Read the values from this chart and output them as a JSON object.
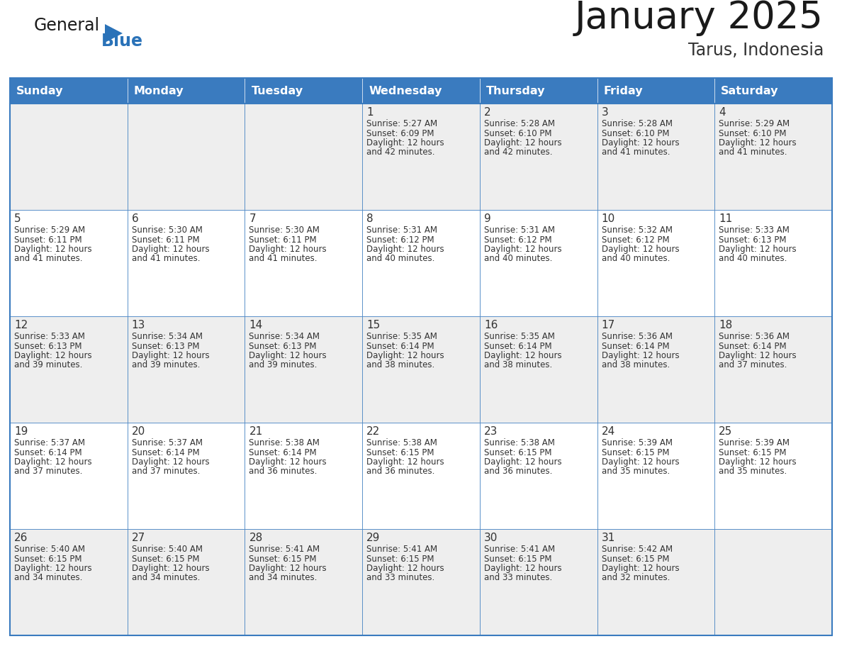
{
  "title": "January 2025",
  "subtitle": "Tarus, Indonesia",
  "days_of_week": [
    "Sunday",
    "Monday",
    "Tuesday",
    "Wednesday",
    "Thursday",
    "Friday",
    "Saturday"
  ],
  "header_bg": "#3a7bbf",
  "header_text": "#ffffff",
  "row_bg_odd": "#eeeeee",
  "row_bg_even": "#ffffff",
  "border_color": "#3a7bbf",
  "day_number_color": "#333333",
  "text_color": "#333333",
  "title_color": "#1a1a1a",
  "subtitle_color": "#333333",
  "logo_general_color": "#1a1a1a",
  "logo_blue_color": "#2a72b8",
  "calendar_data": [
    [
      null,
      null,
      null,
      {
        "day": 1,
        "sunrise": "5:27 AM",
        "sunset": "6:09 PM",
        "daylight_hours": 12,
        "daylight_minutes": 42
      },
      {
        "day": 2,
        "sunrise": "5:28 AM",
        "sunset": "6:10 PM",
        "daylight_hours": 12,
        "daylight_minutes": 42
      },
      {
        "day": 3,
        "sunrise": "5:28 AM",
        "sunset": "6:10 PM",
        "daylight_hours": 12,
        "daylight_minutes": 41
      },
      {
        "day": 4,
        "sunrise": "5:29 AM",
        "sunset": "6:10 PM",
        "daylight_hours": 12,
        "daylight_minutes": 41
      }
    ],
    [
      {
        "day": 5,
        "sunrise": "5:29 AM",
        "sunset": "6:11 PM",
        "daylight_hours": 12,
        "daylight_minutes": 41
      },
      {
        "day": 6,
        "sunrise": "5:30 AM",
        "sunset": "6:11 PM",
        "daylight_hours": 12,
        "daylight_minutes": 41
      },
      {
        "day": 7,
        "sunrise": "5:30 AM",
        "sunset": "6:11 PM",
        "daylight_hours": 12,
        "daylight_minutes": 41
      },
      {
        "day": 8,
        "sunrise": "5:31 AM",
        "sunset": "6:12 PM",
        "daylight_hours": 12,
        "daylight_minutes": 40
      },
      {
        "day": 9,
        "sunrise": "5:31 AM",
        "sunset": "6:12 PM",
        "daylight_hours": 12,
        "daylight_minutes": 40
      },
      {
        "day": 10,
        "sunrise": "5:32 AM",
        "sunset": "6:12 PM",
        "daylight_hours": 12,
        "daylight_minutes": 40
      },
      {
        "day": 11,
        "sunrise": "5:33 AM",
        "sunset": "6:13 PM",
        "daylight_hours": 12,
        "daylight_minutes": 40
      }
    ],
    [
      {
        "day": 12,
        "sunrise": "5:33 AM",
        "sunset": "6:13 PM",
        "daylight_hours": 12,
        "daylight_minutes": 39
      },
      {
        "day": 13,
        "sunrise": "5:34 AM",
        "sunset": "6:13 PM",
        "daylight_hours": 12,
        "daylight_minutes": 39
      },
      {
        "day": 14,
        "sunrise": "5:34 AM",
        "sunset": "6:13 PM",
        "daylight_hours": 12,
        "daylight_minutes": 39
      },
      {
        "day": 15,
        "sunrise": "5:35 AM",
        "sunset": "6:14 PM",
        "daylight_hours": 12,
        "daylight_minutes": 38
      },
      {
        "day": 16,
        "sunrise": "5:35 AM",
        "sunset": "6:14 PM",
        "daylight_hours": 12,
        "daylight_minutes": 38
      },
      {
        "day": 17,
        "sunrise": "5:36 AM",
        "sunset": "6:14 PM",
        "daylight_hours": 12,
        "daylight_minutes": 38
      },
      {
        "day": 18,
        "sunrise": "5:36 AM",
        "sunset": "6:14 PM",
        "daylight_hours": 12,
        "daylight_minutes": 37
      }
    ],
    [
      {
        "day": 19,
        "sunrise": "5:37 AM",
        "sunset": "6:14 PM",
        "daylight_hours": 12,
        "daylight_minutes": 37
      },
      {
        "day": 20,
        "sunrise": "5:37 AM",
        "sunset": "6:14 PM",
        "daylight_hours": 12,
        "daylight_minutes": 37
      },
      {
        "day": 21,
        "sunrise": "5:38 AM",
        "sunset": "6:14 PM",
        "daylight_hours": 12,
        "daylight_minutes": 36
      },
      {
        "day": 22,
        "sunrise": "5:38 AM",
        "sunset": "6:15 PM",
        "daylight_hours": 12,
        "daylight_minutes": 36
      },
      {
        "day": 23,
        "sunrise": "5:38 AM",
        "sunset": "6:15 PM",
        "daylight_hours": 12,
        "daylight_minutes": 36
      },
      {
        "day": 24,
        "sunrise": "5:39 AM",
        "sunset": "6:15 PM",
        "daylight_hours": 12,
        "daylight_minutes": 35
      },
      {
        "day": 25,
        "sunrise": "5:39 AM",
        "sunset": "6:15 PM",
        "daylight_hours": 12,
        "daylight_minutes": 35
      }
    ],
    [
      {
        "day": 26,
        "sunrise": "5:40 AM",
        "sunset": "6:15 PM",
        "daylight_hours": 12,
        "daylight_minutes": 34
      },
      {
        "day": 27,
        "sunrise": "5:40 AM",
        "sunset": "6:15 PM",
        "daylight_hours": 12,
        "daylight_minutes": 34
      },
      {
        "day": 28,
        "sunrise": "5:41 AM",
        "sunset": "6:15 PM",
        "daylight_hours": 12,
        "daylight_minutes": 34
      },
      {
        "day": 29,
        "sunrise": "5:41 AM",
        "sunset": "6:15 PM",
        "daylight_hours": 12,
        "daylight_minutes": 33
      },
      {
        "day": 30,
        "sunrise": "5:41 AM",
        "sunset": "6:15 PM",
        "daylight_hours": 12,
        "daylight_minutes": 33
      },
      {
        "day": 31,
        "sunrise": "5:42 AM",
        "sunset": "6:15 PM",
        "daylight_hours": 12,
        "daylight_minutes": 32
      },
      null
    ]
  ]
}
